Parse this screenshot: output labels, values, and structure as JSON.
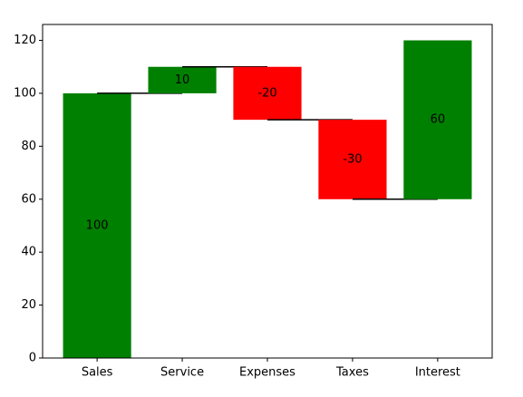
{
  "chart_data": {
    "type": "waterfall",
    "categories": [
      "Sales",
      "Service",
      "Expenses",
      "Taxes",
      "Interest"
    ],
    "values": [
      100,
      10,
      -20,
      -30,
      60
    ],
    "positive_color": "green",
    "negative_color": "red",
    "connector_color": "black",
    "ylim": [
      0,
      126
    ],
    "yticks": [
      0,
      20,
      40,
      60,
      80,
      100,
      120
    ]
  }
}
